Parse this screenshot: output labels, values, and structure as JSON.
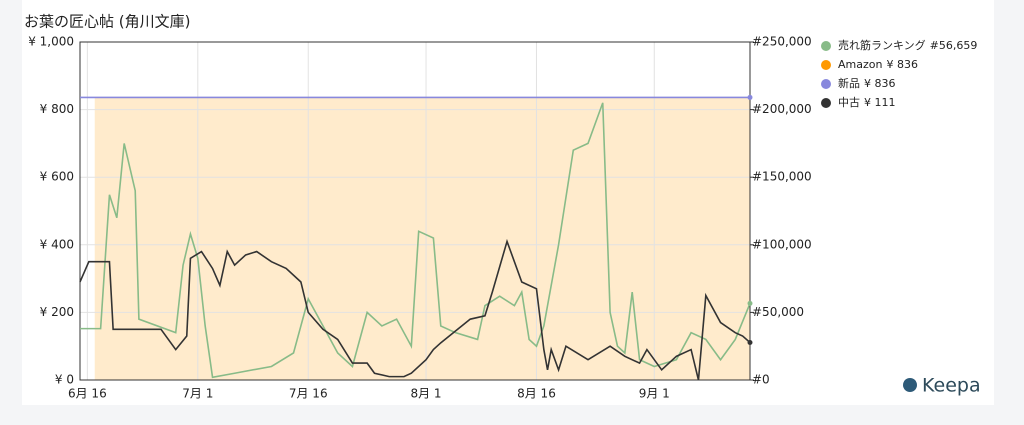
{
  "chart_data": {
    "type": "line",
    "title": "お葉の匠心帖 (角川文庫)",
    "brand": "Keepa",
    "xlim": [
      -1,
      90
    ],
    "xticks": [
      {
        "value": 0,
        "label": "6月 16"
      },
      {
        "value": 15,
        "label": "7月 1"
      },
      {
        "value": 30,
        "label": "7月 16"
      },
      {
        "value": 46,
        "label": "8月 1"
      },
      {
        "value": 61,
        "label": "8月 16"
      },
      {
        "value": 77,
        "label": "9月 1"
      }
    ],
    "ylim": [
      0,
      1000
    ],
    "yticks": [
      {
        "value": 0,
        "label": "¥ 0"
      },
      {
        "value": 200,
        "label": "¥ 200"
      },
      {
        "value": 400,
        "label": "¥ 400"
      },
      {
        "value": 600,
        "label": "¥ 600"
      },
      {
        "value": 800,
        "label": "¥ 800"
      },
      {
        "value": 1000,
        "label": "¥ 1,000"
      }
    ],
    "y2lim": [
      0,
      250000
    ],
    "y2ticks": [
      {
        "value": 0,
        "label": "#0"
      },
      {
        "value": 50000,
        "label": "#50,000"
      },
      {
        "value": 100000,
        "label": "#100,000"
      },
      {
        "value": 150000,
        "label": "#150,000"
      },
      {
        "value": 200000,
        "label": "#200,000"
      },
      {
        "value": 250000,
        "label": "#250,000"
      }
    ],
    "grid": true,
    "series": [
      {
        "name": "Amazon",
        "legend_value": "¥ 836",
        "color": "#ff9900",
        "area": true,
        "x": [
          1,
          90
        ],
        "values": [
          836,
          836
        ]
      },
      {
        "name": "新品",
        "legend_value": "¥ 836",
        "color": "#8888dd",
        "x": [
          -1,
          90
        ],
        "values": [
          836,
          836
        ]
      },
      {
        "name": "売れ筋ランキング",
        "legend_value": "#56,659",
        "color": "#88bb88",
        "axis": "y2",
        "x": [
          -1,
          1.8,
          3,
          4,
          5,
          6.5,
          7,
          12,
          13,
          14,
          15,
          16,
          17,
          20,
          25,
          28,
          30,
          32,
          34,
          36,
          38,
          40,
          42,
          44,
          45,
          47,
          48,
          50,
          53,
          54,
          56,
          58,
          59,
          60,
          61,
          62,
          64,
          66,
          68,
          70,
          71,
          72,
          73,
          74,
          75,
          77,
          80,
          82,
          84,
          86,
          88,
          90
        ],
        "values": [
          38000,
          38000,
          137000,
          120000,
          175000,
          140000,
          45000,
          35000,
          85000,
          108000,
          90000,
          40000,
          2000,
          5000,
          10000,
          20000,
          60000,
          40000,
          20000,
          10000,
          50000,
          40000,
          45000,
          25000,
          110000,
          105000,
          40000,
          35000,
          30000,
          55000,
          62000,
          55000,
          65000,
          30000,
          25000,
          40000,
          100000,
          170000,
          175000,
          205000,
          50000,
          25000,
          20000,
          65000,
          15000,
          10000,
          15000,
          35000,
          30000,
          15000,
          30000,
          56659
        ]
      },
      {
        "name": "中古",
        "legend_value": "¥ 111",
        "color": "#333333",
        "x": [
          -1,
          0.2,
          3,
          3.5,
          10,
          12,
          13.5,
          14,
          15.5,
          17,
          18,
          19,
          20,
          21.5,
          23,
          25,
          27,
          29,
          30,
          32,
          34,
          36,
          38,
          39,
          41,
          43,
          44,
          46,
          47,
          48,
          52,
          54,
          55,
          57,
          59,
          61,
          62,
          62.5,
          63,
          64,
          65,
          68,
          71,
          73,
          75,
          76,
          78,
          80,
          82,
          83,
          84,
          86,
          88,
          89,
          90
        ],
        "values": [
          290,
          350,
          350,
          150,
          150,
          90,
          130,
          360,
          380,
          330,
          280,
          380,
          340,
          370,
          380,
          350,
          330,
          290,
          200,
          150,
          120,
          50,
          50,
          20,
          10,
          10,
          20,
          60,
          90,
          110,
          180,
          190,
          260,
          410,
          290,
          270,
          90,
          30,
          90,
          30,
          100,
          60,
          100,
          70,
          50,
          90,
          30,
          70,
          90,
          0,
          250,
          170,
          140,
          130,
          111
        ]
      }
    ]
  }
}
